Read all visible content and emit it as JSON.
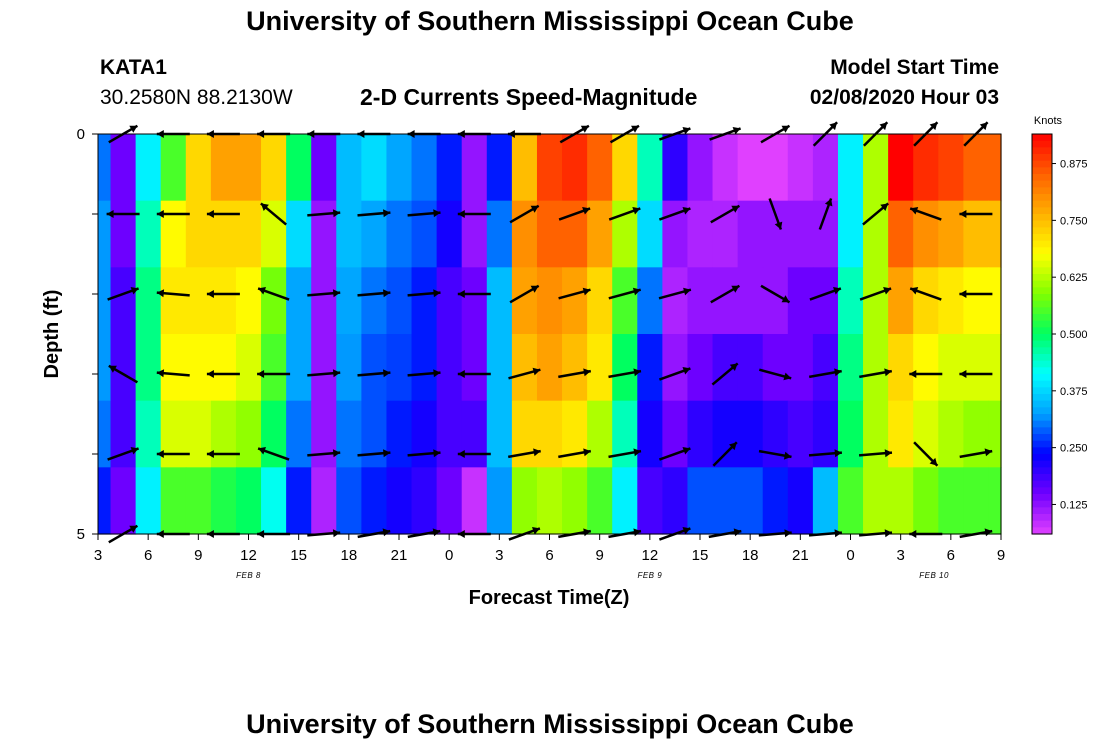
{
  "page": {
    "title_top": "University of Southern Mississippi Ocean Cube",
    "title_bottom": "University of Southern Mississippi Ocean Cube",
    "station_id": "KATA1",
    "station_coords": "30.2580N 88.2130W",
    "model_start_label": "Model Start Time",
    "model_start_value": "02/08/2020 Hour 03"
  },
  "colors": {
    "colormap": [
      "#e040ff",
      "#7000ff",
      "#0000ff",
      "#00a0ff",
      "#00ffff",
      "#00ff60",
      "#80ff00",
      "#ffff00",
      "#ffb000",
      "#ff6000",
      "#ff0000"
    ],
    "arrow": "#000000"
  },
  "chart_data": {
    "type": "heatmap",
    "title": "2-D Currents Speed-Magnitude",
    "xlabel": "Forecast Time(Z)",
    "ylabel": "Depth (ft)",
    "colorbar_label": "Knots",
    "colorbar_ticks": [
      "0.125",
      "0.250",
      "0.375",
      "0.500",
      "0.625",
      "0.750",
      "0.875"
    ],
    "colorbar_range": [
      0.06,
      0.94
    ],
    "x_tick_labels": [
      "3",
      "6",
      "9",
      "12",
      "15",
      "18",
      "21",
      "0",
      "3",
      "6",
      "9",
      "12",
      "15",
      "18",
      "21",
      "0",
      "3",
      "6",
      "9"
    ],
    "x_hours": [
      0,
      3,
      6,
      9,
      12,
      15,
      18,
      21,
      24,
      27,
      30,
      33,
      36,
      39,
      42,
      45,
      48,
      51,
      54
    ],
    "date_labels": [
      {
        "text": "FEB 8",
        "hour": 9
      },
      {
        "text": "FEB 9",
        "hour": 33
      },
      {
        "text": "FEB 10",
        "hour": 50
      }
    ],
    "x_range": [
      0,
      54
    ],
    "y_tick_labels": [
      "0",
      "5"
    ],
    "y_range": [
      0,
      5
    ],
    "column_hours": [
      0,
      1.5,
      3,
      4.5,
      6,
      7.5,
      9,
      10.5,
      12,
      13.5,
      15,
      16.5,
      18,
      19.5,
      21,
      22.5,
      24,
      25.5,
      27,
      28.5,
      30,
      31.5,
      33,
      34.5,
      36,
      37.5,
      39,
      40.5,
      42,
      43.5,
      45,
      46.5,
      48,
      49.5,
      51,
      52.5,
      54
    ],
    "speed_knots_by_depth_row": [
      [
        0.3,
        0.15,
        0.4,
        0.55,
        0.72,
        0.78,
        0.78,
        0.72,
        0.5,
        0.15,
        0.35,
        0.38,
        0.33,
        0.3,
        0.25,
        0.12,
        0.25,
        0.75,
        0.88,
        0.9,
        0.85,
        0.72,
        0.45,
        0.2,
        0.12,
        0.08,
        0.06,
        0.06,
        0.08,
        0.1,
        0.4,
        0.62,
        0.95,
        0.9,
        0.88,
        0.85,
        0.85
      ],
      [
        0.32,
        0.15,
        0.45,
        0.68,
        0.72,
        0.72,
        0.72,
        0.65,
        0.38,
        0.12,
        0.35,
        0.33,
        0.3,
        0.28,
        0.22,
        0.12,
        0.3,
        0.8,
        0.85,
        0.85,
        0.78,
        0.62,
        0.38,
        0.12,
        0.1,
        0.1,
        0.12,
        0.12,
        0.12,
        0.12,
        0.4,
        0.62,
        0.85,
        0.8,
        0.78,
        0.75,
        0.75
      ],
      [
        0.32,
        0.18,
        0.48,
        0.7,
        0.7,
        0.7,
        0.68,
        0.58,
        0.33,
        0.12,
        0.33,
        0.3,
        0.28,
        0.25,
        0.18,
        0.15,
        0.35,
        0.78,
        0.8,
        0.78,
        0.72,
        0.55,
        0.3,
        0.1,
        0.12,
        0.12,
        0.12,
        0.12,
        0.15,
        0.15,
        0.45,
        0.62,
        0.78,
        0.72,
        0.7,
        0.68,
        0.68
      ],
      [
        0.32,
        0.18,
        0.48,
        0.68,
        0.68,
        0.68,
        0.65,
        0.55,
        0.33,
        0.12,
        0.32,
        0.28,
        0.27,
        0.25,
        0.18,
        0.15,
        0.35,
        0.75,
        0.78,
        0.75,
        0.7,
        0.5,
        0.25,
        0.12,
        0.15,
        0.18,
        0.18,
        0.15,
        0.15,
        0.18,
        0.48,
        0.62,
        0.72,
        0.68,
        0.65,
        0.65,
        0.65
      ],
      [
        0.3,
        0.18,
        0.45,
        0.65,
        0.65,
        0.62,
        0.6,
        0.5,
        0.3,
        0.12,
        0.3,
        0.28,
        0.25,
        0.22,
        0.18,
        0.18,
        0.35,
        0.72,
        0.72,
        0.7,
        0.62,
        0.45,
        0.22,
        0.15,
        0.2,
        0.22,
        0.22,
        0.2,
        0.18,
        0.2,
        0.5,
        0.62,
        0.7,
        0.65,
        0.62,
        0.6,
        0.6
      ],
      [
        0.25,
        0.15,
        0.4,
        0.55,
        0.55,
        0.52,
        0.5,
        0.42,
        0.25,
        0.1,
        0.28,
        0.25,
        0.22,
        0.2,
        0.15,
        0.08,
        0.32,
        0.6,
        0.62,
        0.6,
        0.55,
        0.4,
        0.18,
        0.2,
        0.28,
        0.28,
        0.28,
        0.25,
        0.22,
        0.35,
        0.55,
        0.62,
        0.62,
        0.58,
        0.55,
        0.55,
        0.55
      ]
    ],
    "vector_depths_ft": [
      0,
      1,
      2,
      3,
      4,
      5
    ],
    "vector_hours": [
      1.5,
      4.5,
      7.5,
      10.5,
      13.5,
      16.5,
      19.5,
      22.5,
      25.5,
      28.5,
      31.5,
      34.5,
      37.5,
      40.5,
      43.5,
      46.5,
      49.5,
      52.5
    ],
    "vector_direction_deg_by_depth_row": [
      [
        30,
        180,
        180,
        180,
        180,
        180,
        180,
        180,
        180,
        30,
        30,
        20,
        20,
        30,
        45,
        45,
        45,
        45
      ],
      [
        180,
        180,
        180,
        140,
        5,
        5,
        5,
        180,
        30,
        20,
        20,
        20,
        30,
        290,
        70,
        40,
        160,
        180
      ],
      [
        20,
        175,
        180,
        160,
        5,
        5,
        5,
        180,
        30,
        15,
        15,
        15,
        30,
        330,
        20,
        20,
        160,
        180
      ],
      [
        150,
        175,
        180,
        180,
        5,
        5,
        5,
        180,
        15,
        10,
        10,
        20,
        40,
        345,
        10,
        10,
        180,
        180
      ],
      [
        20,
        180,
        180,
        160,
        5,
        5,
        5,
        180,
        10,
        10,
        10,
        20,
        45,
        350,
        5,
        5,
        315,
        10
      ],
      [
        30,
        180,
        180,
        180,
        5,
        10,
        10,
        180,
        20,
        10,
        10,
        20,
        10,
        5,
        5,
        5,
        180,
        10
      ]
    ]
  }
}
